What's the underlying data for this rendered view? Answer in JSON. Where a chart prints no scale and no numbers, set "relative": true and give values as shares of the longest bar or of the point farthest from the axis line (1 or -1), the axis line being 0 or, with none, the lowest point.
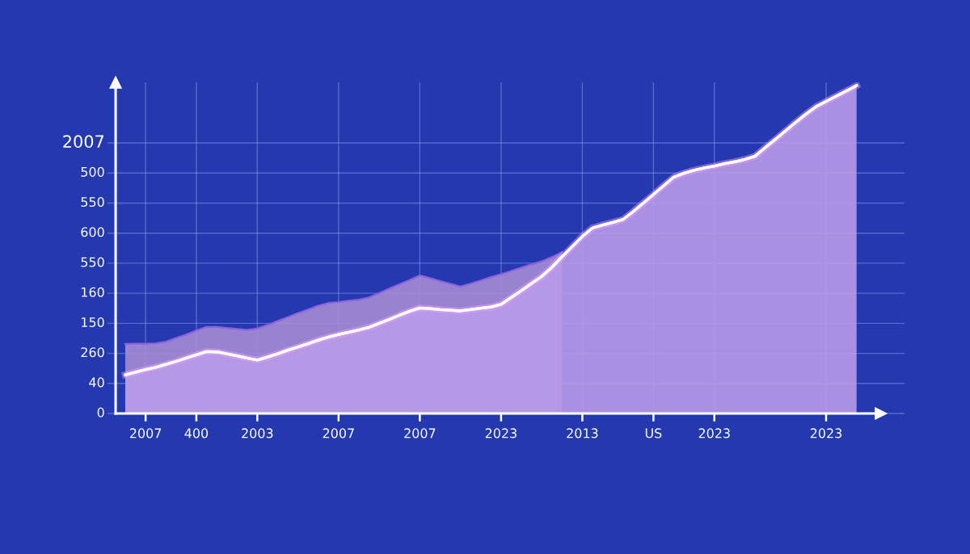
{
  "chart_data": {
    "type": "area",
    "relative": true,
    "categories": [
      null,
      null,
      "2007",
      null,
      null,
      null,
      null,
      "400",
      null,
      null,
      null,
      null,
      null,
      "2003",
      null,
      null,
      null,
      null,
      null,
      null,
      null,
      "2007",
      null,
      null,
      null,
      null,
      null,
      null,
      null,
      "2007",
      null,
      null,
      null,
      null,
      null,
      null,
      null,
      "2023",
      null,
      null,
      null,
      null,
      null,
      null,
      null,
      "2013",
      null,
      null,
      null,
      null,
      null,
      null,
      "US",
      null,
      null,
      null,
      null,
      null,
      "2023",
      null,
      null,
      null,
      null,
      null,
      null,
      null,
      null,
      null,
      null,
      "2023",
      null,
      null,
      null
    ],
    "annotations": [
      "2007",
      "500",
      "550",
      "600",
      "550",
      "160",
      "150",
      "260",
      "40",
      "0"
    ],
    "grid": true,
    "line_style": "solid",
    "series": [
      {
        "color": "#a48cd4",
        "values": [
          0.212,
          0.213,
          0.213,
          0.214,
          0.219,
          0.23,
          0.241,
          0.253,
          0.264,
          0.264,
          0.261,
          0.258,
          0.255,
          0.259,
          0.27,
          0.282,
          0.294,
          0.306,
          0.317,
          0.329,
          0.337,
          0.34,
          0.344,
          0.347,
          0.354,
          0.367,
          0.381,
          0.394,
          0.407,
          0.421,
          0.413,
          0.404,
          0.396,
          0.387,
          0.396,
          0.406,
          0.416,
          0.425,
          0.435,
          0.445,
          0.455,
          0.464,
          0.477,
          0.492,
          null,
          null,
          null,
          null,
          null,
          null,
          null,
          null,
          null,
          null,
          null,
          null,
          null,
          null,
          null,
          null,
          null,
          null,
          null,
          null,
          null,
          null,
          null,
          null,
          null,
          null,
          null,
          null,
          null
        ]
      },
      {
        "color": "#b89ae8",
        "values": [
          0.118,
          0.126,
          0.134,
          0.141,
          0.15,
          0.159,
          0.169,
          0.179,
          0.189,
          0.188,
          0.182,
          0.176,
          0.169,
          0.163,
          0.172,
          0.182,
          0.193,
          0.203,
          0.213,
          0.224,
          0.233,
          0.241,
          0.248,
          0.255,
          0.263,
          0.275,
          0.287,
          0.3,
          0.312,
          0.322,
          0.32,
          0.317,
          0.315,
          0.313,
          0.317,
          0.321,
          0.325,
          0.333,
          0.354,
          0.375,
          0.397,
          0.418,
          0.446,
          0.478,
          0.509,
          0.54,
          0.566,
          0.575,
          0.583,
          0.592,
          0.616,
          0.642,
          0.668,
          0.695,
          0.721,
          0.733,
          0.742,
          0.749,
          0.755,
          0.762,
          0.768,
          0.775,
          0.785,
          0.811,
          0.836,
          0.862,
          0.888,
          0.913,
          0.936,
          0.952,
          0.968,
          0.984,
          1.0
        ]
      }
    ]
  }
}
